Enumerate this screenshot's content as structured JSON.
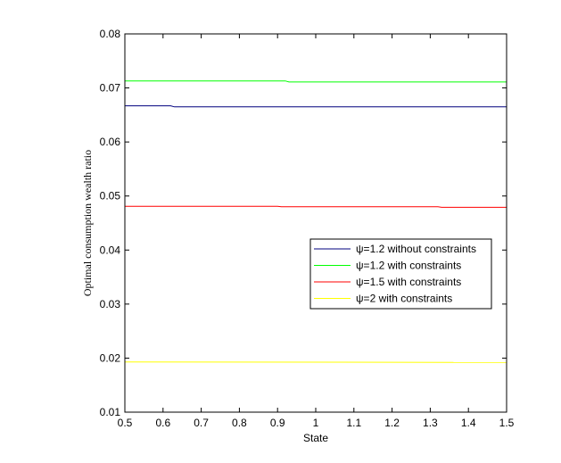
{
  "chart_data": {
    "type": "line",
    "title": "",
    "xlabel": "State",
    "ylabel": "Optimal consumption wealth ratio",
    "xlim": [
      0.5,
      1.5
    ],
    "ylim": [
      0.01,
      0.08
    ],
    "xticks": [
      0.5,
      0.6,
      0.7,
      0.8,
      0.9,
      1,
      1.1,
      1.2,
      1.3,
      1.4,
      1.5
    ],
    "xtick_labels": [
      "0.5",
      "0.6",
      "0.7",
      "0.8",
      "0.9",
      "1",
      "1.1",
      "1.2",
      "1.3",
      "1.4",
      "1.5"
    ],
    "yticks": [
      0.01,
      0.02,
      0.03,
      0.04,
      0.05,
      0.06,
      0.07,
      0.08
    ],
    "ytick_labels": [
      "0.01",
      "0.02",
      "0.03",
      "0.04",
      "0.05",
      "0.06",
      "0.07",
      "0.08"
    ],
    "grid": false,
    "legend_position": "center-right",
    "series": [
      {
        "name": "ψ=1.2 without constraints",
        "color": "#00007f",
        "x": [
          0.5,
          0.62,
          0.63,
          1.5
        ],
        "y": [
          0.0667,
          0.0667,
          0.0665,
          0.0665
        ]
      },
      {
        "name": "ψ=1.2 with constraints",
        "color": "#00ff00",
        "x": [
          0.5,
          0.92,
          0.93,
          1.5
        ],
        "y": [
          0.0713,
          0.0713,
          0.0711,
          0.0711
        ]
      },
      {
        "name": "ψ=1.5 with constraints",
        "color": "#ff0000",
        "x": [
          0.5,
          0.9,
          0.91,
          1.32,
          1.33,
          1.5
        ],
        "y": [
          0.0481,
          0.0481,
          0.048,
          0.048,
          0.0479,
          0.0479
        ]
      },
      {
        "name": "ψ=2 with constraints",
        "color": "#ffff00",
        "x": [
          0.5,
          1.5
        ],
        "y": [
          0.0193,
          0.0192
        ]
      }
    ]
  }
}
